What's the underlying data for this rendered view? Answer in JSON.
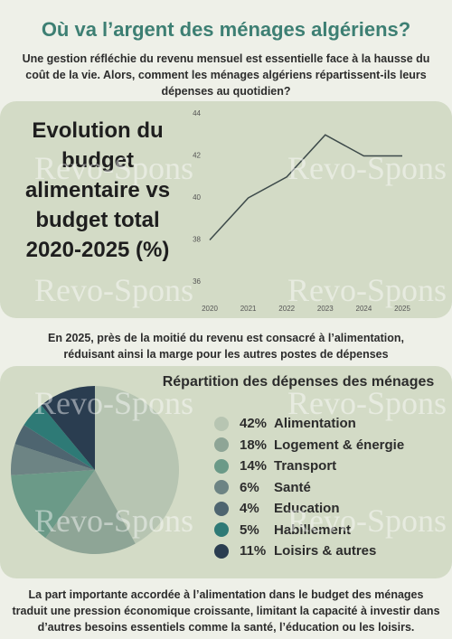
{
  "title": "Où va l’argent des ménages algériens?",
  "intro": "Une gestion réfléchie du revenu mensuel est essentielle face à la hausse du coût de la vie. Alors, comment les ménages algériens répartissent-ils leurs dépenses au quotidien?",
  "note": "En 2025, près de la moitié du revenu est consacré à l’alimentation, réduisant ainsi la marge pour les autres postes de dépenses",
  "conclusion": "La part importante accordée à l’alimentation dans le budget des ménages traduit une pression économique croissante, limitant la capacité à investir dans d’autres besoins essentiels comme la santé, l’éducation ou les loisirs.",
  "watermark": "Revo-Spons",
  "chart_data": [
    {
      "type": "line",
      "title": "Evolution du budget alimentaire vs budget total 2020-2025 (%)",
      "categories": [
        "2020",
        "2021",
        "2022",
        "2023",
        "2024",
        "2025"
      ],
      "values": [
        38,
        40,
        41,
        43,
        42,
        42
      ],
      "color": "#3d4a4a",
      "ylim": [
        36,
        44
      ],
      "yticks": [
        36,
        38,
        40,
        42,
        44
      ],
      "grid": false
    },
    {
      "type": "pie",
      "title": "Répartition des dépenses des ménages",
      "categories": [
        "Alimentation",
        "Logement & énergie",
        "Transport",
        "Santé",
        "Education",
        "Habillement",
        "Loisirs & autres"
      ],
      "values": [
        42,
        18,
        14,
        6,
        4,
        5,
        11
      ],
      "value_labels": [
        "42%",
        "18%",
        "14%",
        "6%",
        "4%",
        "5%",
        "11%"
      ],
      "colors": [
        "#b7c5b2",
        "#8ea596",
        "#6b9a88",
        "#6d8484",
        "#4e6570",
        "#2e7a76",
        "#2a3d50"
      ]
    }
  ]
}
